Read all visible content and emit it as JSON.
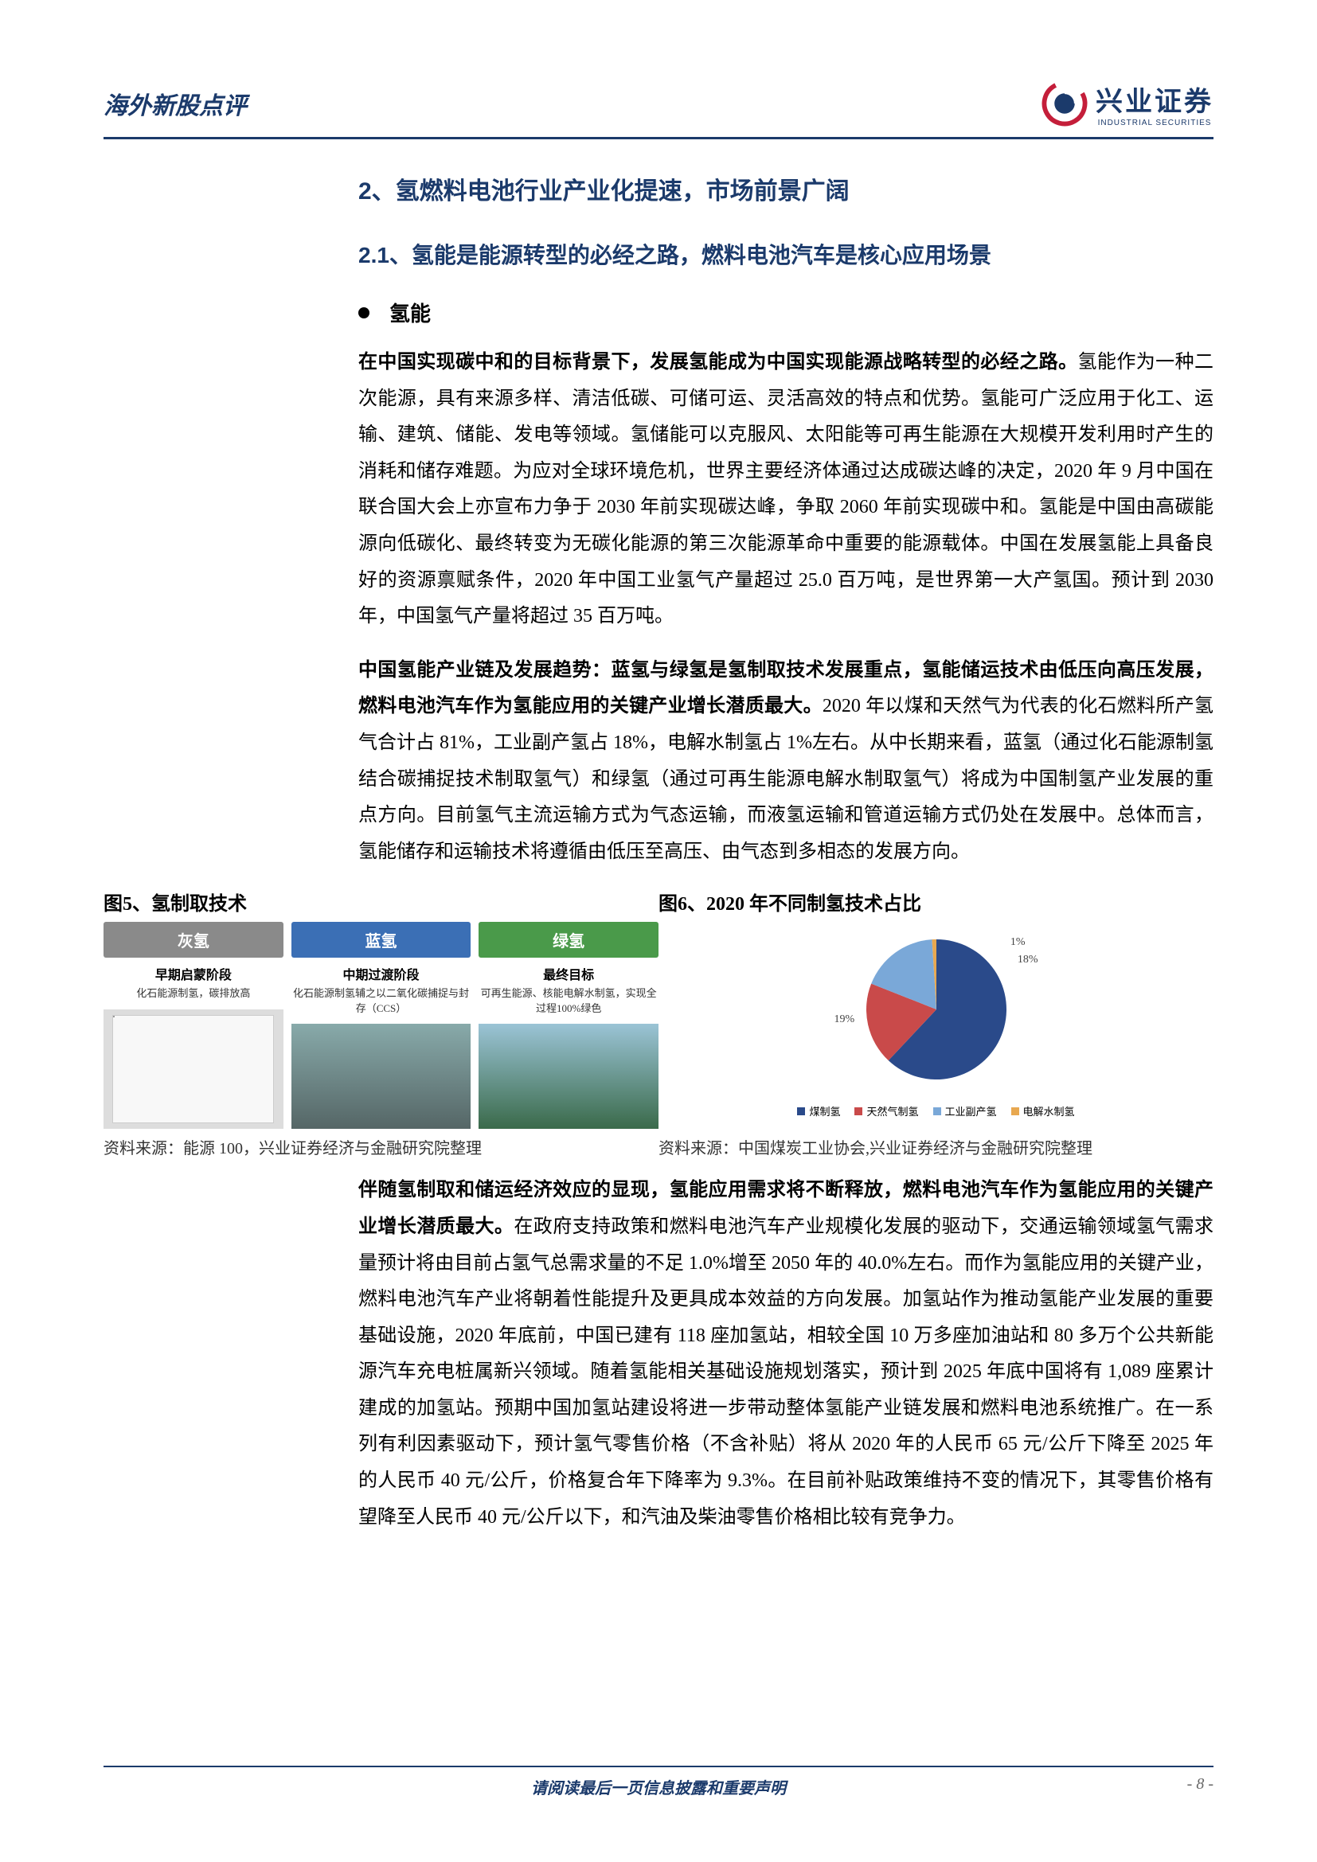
{
  "header": {
    "left": "海外新股点评",
    "brand_cn": "兴业证券",
    "brand_en": "INDUSTRIAL SECURITIES",
    "logo_colors": {
      "outer": "#c41e3a",
      "inner": "#1b3a6b"
    }
  },
  "section": {
    "title": "2、氢燃料电池行业产业化提速，市场前景广阔",
    "subtitle": "2.1、氢能是能源转型的必经之路，燃料电池汽车是核心应用场景"
  },
  "bullet_heading": "氢能",
  "para1_bold": "在中国实现碳中和的目标背景下，发展氢能成为中国实现能源战略转型的必经之路。",
  "para1_rest": "氢能作为一种二次能源，具有来源多样、清洁低碳、可储可运、灵活高效的特点和优势。氢能可广泛应用于化工、运输、建筑、储能、发电等领域。氢储能可以克服风、太阳能等可再生能源在大规模开发利用时产生的消耗和储存难题。为应对全球环境危机，世界主要经济体通过达成碳达峰的决定，2020 年 9 月中国在联合国大会上亦宣布力争于 2030 年前实现碳达峰，争取 2060 年前实现碳中和。氢能是中国由高碳能源向低碳化、最终转变为无碳化能源的第三次能源革命中重要的能源载体。中国在发展氢能上具备良好的资源禀赋条件，2020 年中国工业氢气产量超过 25.0 百万吨，是世界第一大产氢国。预计到 2030 年，中国氢气产量将超过 35 百万吨。",
  "para2_bold": "中国氢能产业链及发展趋势：蓝氢与绿氢是氢制取技术发展重点，氢能储运技术由低压向高压发展，燃料电池汽车作为氢能应用的关键产业增长潜质最大。",
  "para2_rest": "2020 年以煤和天然气为代表的化石燃料所产氢气合计占 81%，工业副产氢占 18%，电解水制氢占 1%左右。从中长期来看，蓝氢（通过化石能源制氢结合碳捕捉技术制取氢气）和绿氢（通过可再生能源电解水制取氢气）将成为中国制氢产业发展的重点方向。目前氢气主流运输方式为气态运输，而液氢运输和管道运输方式仍处在发展中。总体而言，氢能储存和运输技术将遵循由低压至高压、由气态到多相态的发展方向。",
  "fig5": {
    "caption": "图5、氢制取技术",
    "cols": [
      {
        "name": "灰氢",
        "color": "#8a8a8a",
        "sub": "早期启蒙阶段",
        "desc": "化石能源制氢，碳排放高"
      },
      {
        "name": "蓝氢",
        "color": "#3b6fb5",
        "sub": "中期过渡阶段",
        "desc": "化石能源制氢辅之以二氧化碳捕捉与封存（CCS）"
      },
      {
        "name": "绿氢",
        "color": "#4a9a4a",
        "sub": "最终目标",
        "desc": "可再生能源、核能电解水制氢，实现全过程100%绿色"
      }
    ],
    "source": "资料来源：能源 100，兴业证券经济与金融研究院整理"
  },
  "fig6": {
    "caption": "图6、2020 年不同制氢技术占比",
    "type": "pie",
    "slices": [
      {
        "label": "煤制氢",
        "value": 62,
        "color": "#2a4a8a"
      },
      {
        "label": "天然气制氢",
        "value": 19,
        "color": "#c94a4a"
      },
      {
        "label": "工业副产氢",
        "value": 18,
        "color": "#7aa8d8"
      },
      {
        "label": "电解水制氢",
        "value": 1,
        "color": "#e8a850"
      }
    ],
    "label_19": "19%",
    "label_18": "18%",
    "label_1": "1%",
    "source": "资料来源：中国煤炭工业协会,兴业证券经济与金融研究院整理"
  },
  "para3_bold": "伴随氢制取和储运经济效应的显现，氢能应用需求将不断释放，燃料电池汽车作为氢能应用的关键产业增长潜质最大。",
  "para3_rest": "在政府支持政策和燃料电池汽车产业规模化发展的驱动下，交通运输领域氢气需求量预计将由目前占氢气总需求量的不足 1.0%增至 2050 年的 40.0%左右。而作为氢能应用的关键产业，燃料电池汽车产业将朝着性能提升及更具成本效益的方向发展。加氢站作为推动氢能产业发展的重要基础设施，2020 年底前，中国已建有 118 座加氢站，相较全国 10 万多座加油站和 80 多万个公共新能源汽车充电桩属新兴领域。随着氢能相关基础设施规划落实，预计到 2025 年底中国将有 1,089 座累计建成的加氢站。预期中国加氢站建设将进一步带动整体氢能产业链发展和燃料电池系统推广。在一系列有利因素驱动下，预计氢气零售价格（不含补贴）将从 2020 年的人民币 65 元/公斤下降至 2025 年的人民币 40 元/公斤，价格复合年下降率为 9.3%。在目前补贴政策维持不变的情况下，其零售价格有望降至人民币 40 元/公斤以下，和汽油及柴油零售价格相比较有竞争力。",
  "footer": {
    "text": "请阅读最后一页信息披露和重要声明",
    "page": "- 8 -"
  }
}
